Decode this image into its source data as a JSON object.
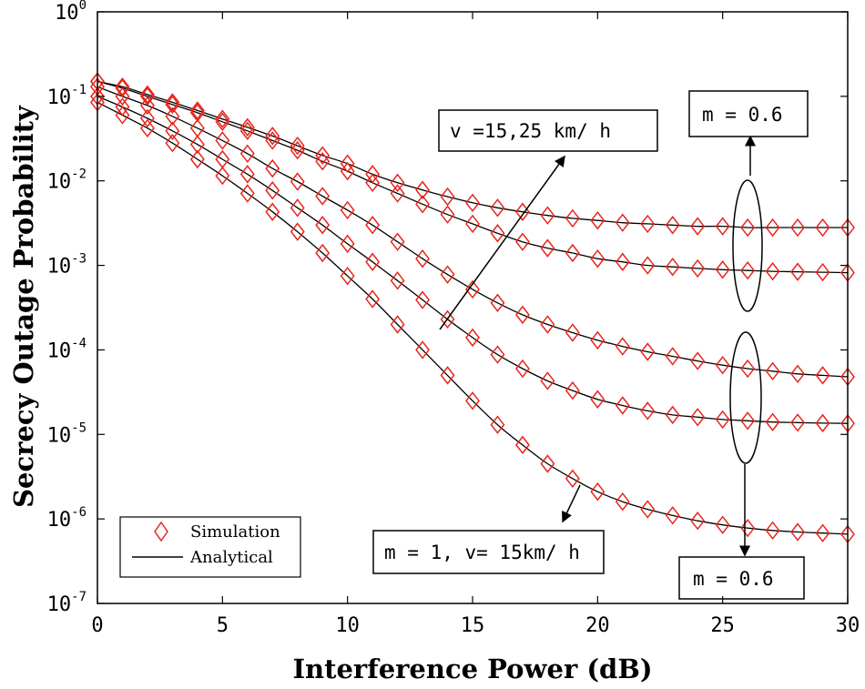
{
  "chart_data": {
    "type": "line",
    "xlabel": "Interference Power (dB)",
    "ylabel": "Secrecy Outage Probability",
    "xlim": [
      0,
      30
    ],
    "ylim": [
      1e-07,
      1
    ],
    "yscale": "log",
    "grid": false,
    "legend_placement": "bottom-left",
    "x_ticks": [
      "0",
      "5",
      "10",
      "15",
      "20",
      "25",
      "30"
    ],
    "y_ticks": [
      {
        "base": "10",
        "exp": "0"
      },
      {
        "base": "10",
        "exp": "-1"
      },
      {
        "base": "10",
        "exp": "-2"
      },
      {
        "base": "10",
        "exp": "-3"
      },
      {
        "base": "10",
        "exp": "-4"
      },
      {
        "base": "10",
        "exp": "-5"
      },
      {
        "base": "10",
        "exp": "-6"
      },
      {
        "base": "10",
        "exp": "-7"
      }
    ],
    "legend": [
      {
        "label": "Simulation",
        "marker": "diamond",
        "color": "#e8251c"
      },
      {
        "label": "Analytical",
        "marker": "line",
        "color": "#000000"
      }
    ],
    "colors": {
      "simulation": "#e8251c",
      "analytical": "#000000"
    },
    "annotations": {
      "speed_label": "v =15,25 km/ h",
      "m_top_label": "m = 0.6",
      "m_bottom_label": "m = 0.6",
      "m1_label": "m = 1, v= 15km/ h"
    },
    "x": [
      0,
      1,
      2,
      3,
      4,
      5,
      6,
      7,
      8,
      9,
      10,
      11,
      12,
      13,
      14,
      15,
      16,
      17,
      18,
      19,
      20,
      21,
      22,
      23,
      24,
      25,
      26,
      27,
      28,
      29,
      30
    ],
    "series": [
      {
        "values": [
          0.15,
          0.13,
          0.105,
          0.085,
          0.068,
          0.054,
          0.043,
          0.034,
          0.026,
          0.02,
          0.016,
          0.012,
          0.0095,
          0.0078,
          0.0065,
          0.0055,
          0.0048,
          0.0043,
          0.0039,
          0.0036,
          0.0034,
          0.0032,
          0.0031,
          0.003,
          0.0029,
          0.0029,
          0.0028,
          0.0028,
          0.0028,
          0.0028,
          0.0028
        ]
      },
      {
        "values": [
          0.15,
          0.125,
          0.1,
          0.08,
          0.064,
          0.05,
          0.039,
          0.03,
          0.023,
          0.017,
          0.013,
          0.0095,
          0.0071,
          0.0053,
          0.004,
          0.0031,
          0.0024,
          0.0019,
          0.0016,
          0.0014,
          0.0012,
          0.0011,
          0.001,
          0.00096,
          0.00092,
          0.00089,
          0.00087,
          0.00085,
          0.00084,
          0.00083,
          0.00082
        ]
      },
      {
        "values": [
          0.13,
          0.1,
          0.078,
          0.058,
          0.042,
          0.03,
          0.021,
          0.014,
          0.0098,
          0.0066,
          0.0045,
          0.003,
          0.0019,
          0.0012,
          0.00078,
          0.00052,
          0.00036,
          0.00026,
          0.0002,
          0.00016,
          0.00013,
          0.00011,
          9.5e-05,
          8.4e-05,
          7.4e-05,
          6.6e-05,
          6e-05,
          5.6e-05,
          5.2e-05,
          5e-05,
          4.8e-05
        ]
      },
      {
        "values": [
          0.1,
          0.075,
          0.055,
          0.039,
          0.027,
          0.018,
          0.012,
          0.0077,
          0.0048,
          0.003,
          0.0018,
          0.0011,
          0.00066,
          0.00039,
          0.00023,
          0.00014,
          8.8e-05,
          6e-05,
          4.3e-05,
          3.3e-05,
          2.6e-05,
          2.2e-05,
          1.9e-05,
          1.7e-05,
          1.6e-05,
          1.5e-05,
          1.45e-05,
          1.4e-05,
          1.38e-05,
          1.36e-05,
          1.35e-05
        ]
      },
      {
        "values": [
          0.085,
          0.06,
          0.042,
          0.028,
          0.018,
          0.0115,
          0.0071,
          0.0043,
          0.0025,
          0.0014,
          0.00075,
          0.0004,
          0.0002,
          0.0001,
          5e-05,
          2.5e-05,
          1.3e-05,
          7.5e-06,
          4.5e-06,
          3e-06,
          2.1e-06,
          1.6e-06,
          1.3e-06,
          1.1e-06,
          9.5e-07,
          8.5e-07,
          7.8e-07,
          7.3e-07,
          7e-07,
          6.8e-07,
          6.6e-07
        ]
      }
    ]
  }
}
